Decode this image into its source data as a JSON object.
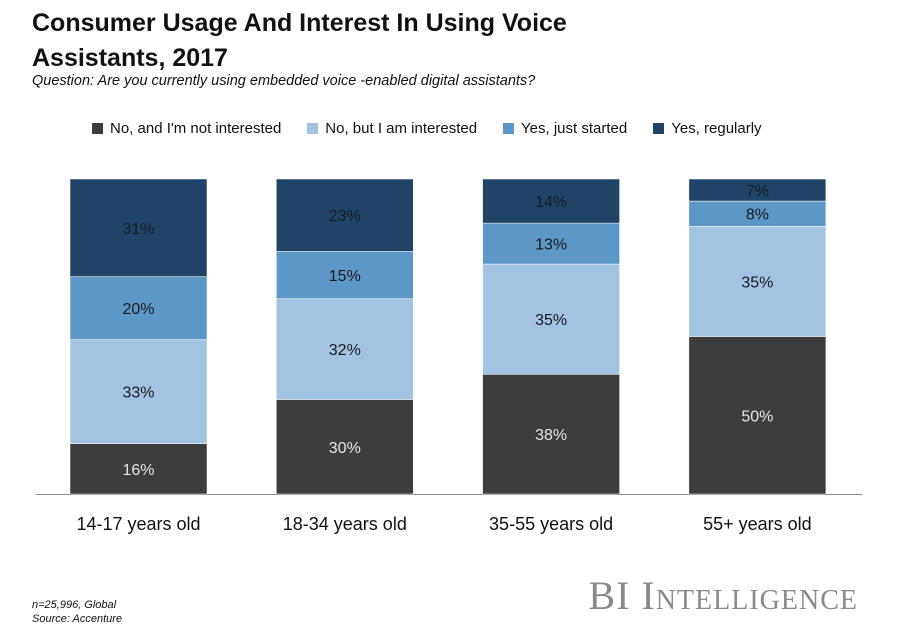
{
  "title": "Consumer Usage And Interest In Using Voice Assistants, 2017",
  "subtitle": "Question: Are you currently using embedded voice -enabled digital assistants?",
  "footnote": {
    "sample": "n=25,996, Global",
    "source": "Source: Accenture"
  },
  "brand": "BI Intelligence",
  "chart_data": {
    "type": "bar",
    "stacked": true,
    "normalized": true,
    "title": "Consumer Usage And Interest In Using Voice Assistants, 2017",
    "xlabel": "",
    "ylabel": "",
    "ylim": [
      0,
      100
    ],
    "grid": false,
    "legend_position": "top",
    "categories": [
      "14-17 years old",
      "18-34 years old",
      "35-55 years old",
      "55+ years old"
    ],
    "series": [
      {
        "name": "No, and I'm not interested",
        "color": "#3d3d3d",
        "values": [
          16,
          30,
          38,
          50
        ],
        "labels": [
          "16%",
          "30%",
          "38%",
          "50%"
        ]
      },
      {
        "name": "No, but I am interested",
        "color": "#a2c4e2",
        "values": [
          33,
          32,
          35,
          35
        ],
        "labels": [
          "33%",
          "32%",
          "35%",
          "35%"
        ]
      },
      {
        "name": "Yes, just started",
        "color": "#5b98c8",
        "values": [
          20,
          15,
          13,
          8
        ],
        "labels": [
          "20%",
          "15%",
          "13%",
          "8%"
        ]
      },
      {
        "name": "Yes, regularly",
        "color": "#1f4467",
        "values": [
          31,
          23,
          14,
          7
        ],
        "labels": [
          "31%",
          "23%",
          "14%",
          "7%"
        ]
      }
    ]
  }
}
